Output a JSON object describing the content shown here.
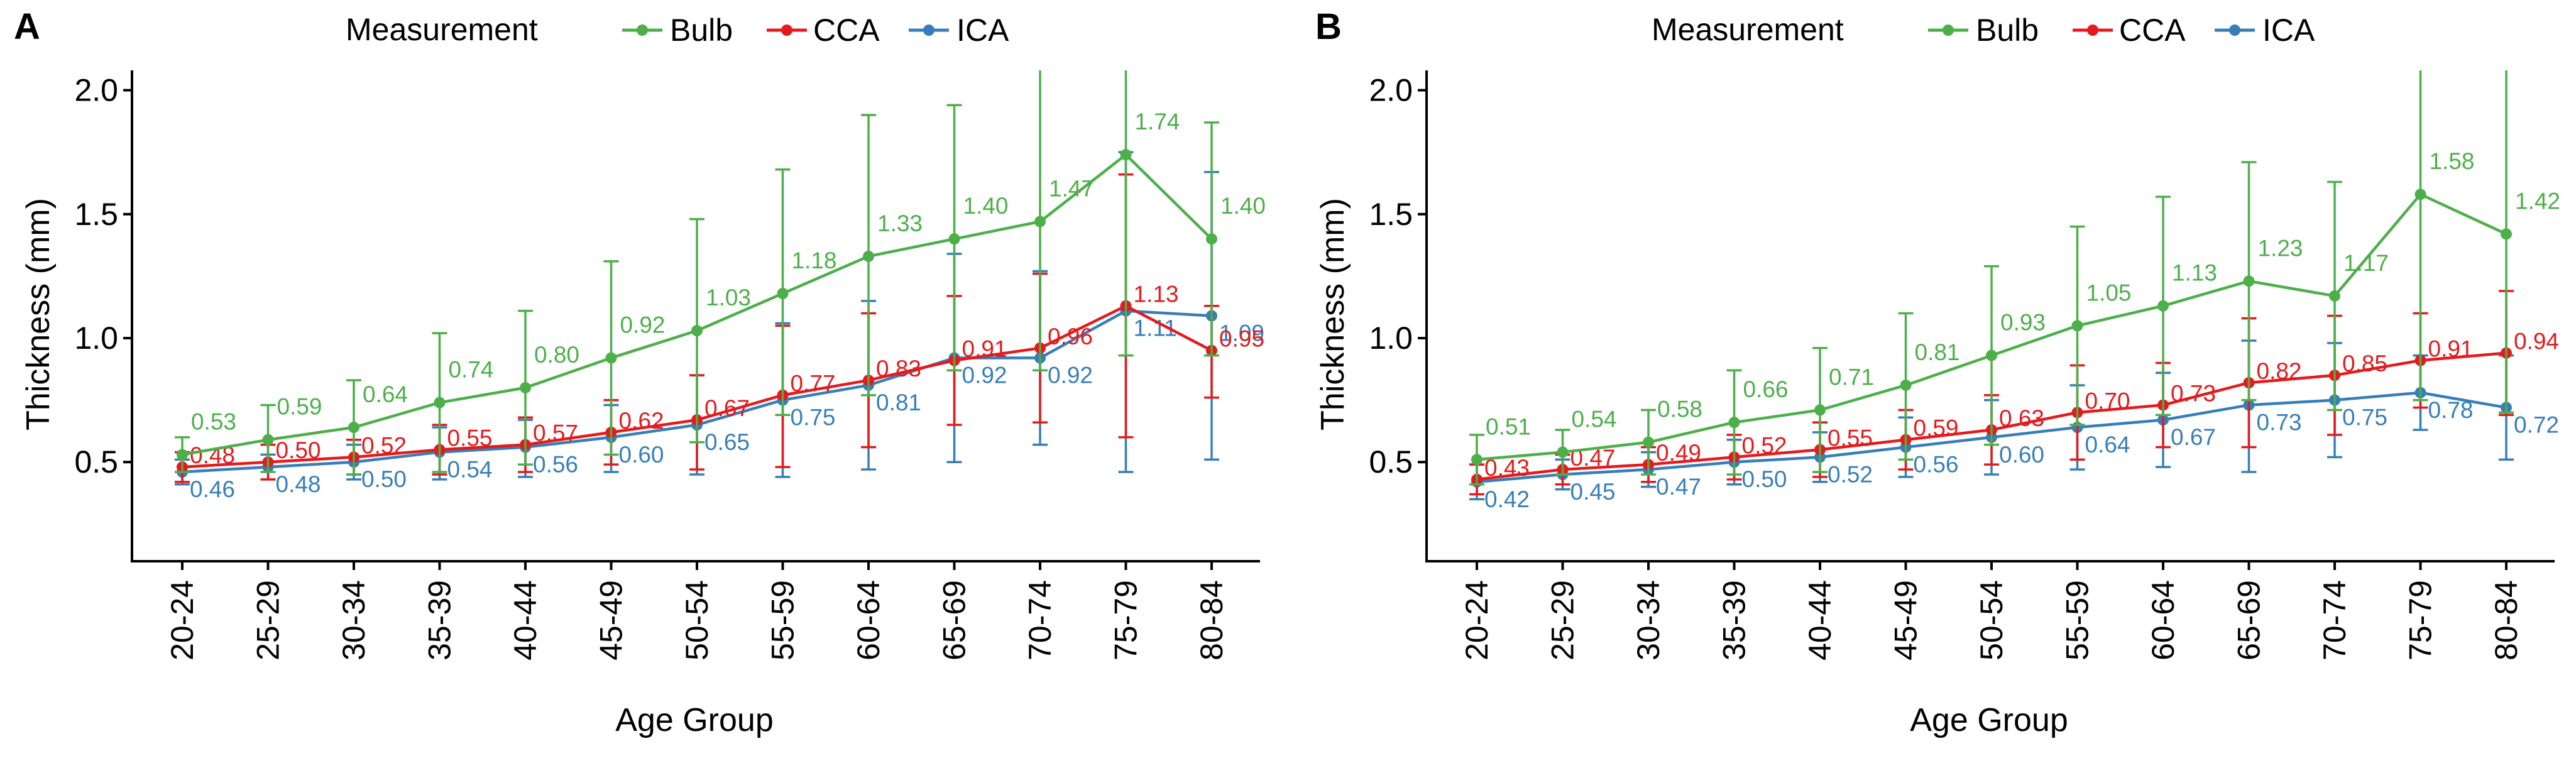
{
  "colors": {
    "Bulb": "#4daf4a",
    "CCA": "#e41a1c",
    "ICA": "#377eb8"
  },
  "legend": {
    "title": "Measurement",
    "entries": [
      "Bulb",
      "CCA",
      "ICA"
    ]
  },
  "chart_data": [
    {
      "panel": "A",
      "type": "line",
      "xlabel": "Age Group",
      "ylabel": "Thickness (mm)",
      "ylim": [
        0.1,
        2.08
      ],
      "yticks": [
        0.5,
        1.0,
        1.5,
        2.0
      ],
      "ytick_labels": [
        "0.5",
        "1.0",
        "1.5",
        "2.0"
      ],
      "categories": [
        "20-24",
        "25-29",
        "30-34",
        "35-39",
        "40-44",
        "45-49",
        "50-54",
        "55-59",
        "60-64",
        "65-69",
        "70-74",
        "75-79",
        "80-84"
      ],
      "series": [
        {
          "name": "Bulb",
          "values": [
            0.53,
            0.59,
            0.64,
            0.74,
            0.8,
            0.92,
            1.03,
            1.18,
            1.33,
            1.4,
            1.47,
            1.74,
            1.4
          ],
          "labels": [
            "0.53",
            "0.59",
            "0.64",
            "0.74",
            "0.80",
            "0.92",
            "1.03",
            "1.18",
            "1.33",
            "1.40",
            "1.47",
            "1.74",
            "1.40"
          ],
          "err_low": [
            0.46,
            0.46,
            0.45,
            0.46,
            0.49,
            0.53,
            0.58,
            0.69,
            0.77,
            0.87,
            0.87,
            0.93,
            0.93
          ],
          "err_high": [
            0.6,
            0.73,
            0.83,
            1.02,
            1.11,
            1.31,
            1.48,
            1.68,
            1.9,
            1.94,
            2.08,
            2.08,
            1.87
          ]
        },
        {
          "name": "CCA",
          "values": [
            0.48,
            0.5,
            0.52,
            0.55,
            0.57,
            0.62,
            0.67,
            0.77,
            0.83,
            0.91,
            0.96,
            1.13,
            0.95
          ],
          "labels": [
            "0.48",
            "0.50",
            "0.52",
            "0.55",
            "0.57",
            "0.62",
            "0.67",
            "0.77",
            "0.83",
            "0.91",
            "0.96",
            "1.13",
            "0.95"
          ],
          "err_low": [
            0.42,
            0.43,
            0.45,
            0.45,
            0.46,
            0.49,
            0.47,
            0.48,
            0.56,
            0.65,
            0.66,
            0.6,
            0.76
          ],
          "err_high": [
            0.54,
            0.57,
            0.59,
            0.65,
            0.68,
            0.75,
            0.85,
            1.05,
            1.1,
            1.17,
            1.26,
            1.66,
            1.13
          ]
        },
        {
          "name": "ICA",
          "values": [
            0.46,
            0.48,
            0.5,
            0.54,
            0.56,
            0.6,
            0.65,
            0.75,
            0.81,
            0.92,
            0.92,
            1.11,
            1.09
          ],
          "labels": [
            "0.46",
            "0.48",
            "0.50",
            "0.54",
            "0.56",
            "0.60",
            "0.65",
            "0.75",
            "0.81",
            "0.92",
            "0.92",
            "1.11",
            "1.09"
          ],
          "err_low": [
            0.41,
            0.43,
            0.43,
            0.43,
            0.44,
            0.46,
            0.45,
            0.44,
            0.47,
            0.5,
            0.57,
            0.46,
            0.51
          ],
          "err_high": [
            0.51,
            0.53,
            0.57,
            0.64,
            0.67,
            0.73,
            0.85,
            1.06,
            1.15,
            1.34,
            1.27,
            1.75,
            1.67
          ]
        }
      ]
    },
    {
      "panel": "B",
      "type": "line",
      "xlabel": "Age Group",
      "ylabel": "Thickness (mm)",
      "ylim": [
        0.1,
        2.08
      ],
      "yticks": [
        0.5,
        1.0,
        1.5,
        2.0
      ],
      "ytick_labels": [
        "0.5",
        "1.0",
        "1.5",
        "2.0"
      ],
      "categories": [
        "20-24",
        "25-29",
        "30-34",
        "35-39",
        "40-44",
        "45-49",
        "50-54",
        "55-59",
        "60-64",
        "65-69",
        "70-74",
        "75-79",
        "80-84"
      ],
      "series": [
        {
          "name": "Bulb",
          "values": [
            0.51,
            0.54,
            0.58,
            0.66,
            0.71,
            0.81,
            0.93,
            1.05,
            1.13,
            1.23,
            1.17,
            1.58,
            1.42
          ],
          "labels": [
            "0.51",
            "0.54",
            "0.58",
            "0.66",
            "0.71",
            "0.81",
            "0.93",
            "1.05",
            "1.13",
            "1.23",
            "1.17",
            "1.58",
            "1.42"
          ],
          "err_low": [
            0.41,
            0.45,
            0.45,
            0.45,
            0.46,
            0.51,
            0.57,
            0.65,
            0.69,
            0.75,
            0.71,
            0.75,
            0.7
          ],
          "err_high": [
            0.61,
            0.63,
            0.71,
            0.87,
            0.96,
            1.1,
            1.29,
            1.45,
            1.57,
            1.71,
            1.63,
            2.08,
            2.08
          ]
        },
        {
          "name": "CCA",
          "values": [
            0.43,
            0.47,
            0.49,
            0.52,
            0.55,
            0.59,
            0.63,
            0.7,
            0.73,
            0.82,
            0.85,
            0.91,
            0.94
          ],
          "labels": [
            "0.43",
            "0.47",
            "0.49",
            "0.52",
            "0.55",
            "0.59",
            "0.63",
            "0.70",
            "0.73",
            "0.82",
            "0.85",
            "0.91",
            "0.94"
          ],
          "err_low": [
            0.37,
            0.41,
            0.42,
            0.43,
            0.44,
            0.47,
            0.49,
            0.51,
            0.56,
            0.56,
            0.61,
            0.72,
            0.69
          ],
          "err_high": [
            0.49,
            0.53,
            0.56,
            0.61,
            0.66,
            0.71,
            0.77,
            0.89,
            0.9,
            1.08,
            1.09,
            1.1,
            1.19
          ]
        },
        {
          "name": "ICA",
          "values": [
            0.42,
            0.45,
            0.47,
            0.5,
            0.52,
            0.56,
            0.6,
            0.64,
            0.67,
            0.73,
            0.75,
            0.78,
            0.72
          ],
          "labels": [
            "0.42",
            "0.45",
            "0.47",
            "0.50",
            "0.52",
            "0.56",
            "0.60",
            "0.64",
            "0.67",
            "0.73",
            "0.75",
            "0.78",
            "0.72"
          ],
          "err_low": [
            0.35,
            0.39,
            0.4,
            0.41,
            0.42,
            0.44,
            0.45,
            0.47,
            0.48,
            0.46,
            0.52,
            0.63,
            0.51
          ],
          "err_high": [
            0.49,
            0.51,
            0.54,
            0.59,
            0.62,
            0.68,
            0.75,
            0.81,
            0.86,
            0.99,
            0.98,
            0.93,
            0.93
          ]
        }
      ]
    }
  ]
}
